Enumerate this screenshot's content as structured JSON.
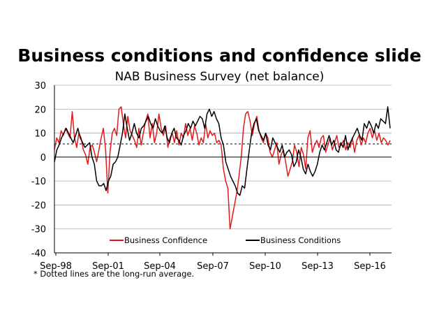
{
  "chart_data": {
    "type": "line",
    "title": "Business conditions and confidence slide",
    "subtitle": "NAB Business Survey (net balance)",
    "xlabel": "",
    "ylabel": "",
    "ylim": [
      -40,
      30
    ],
    "yticks": [
      30,
      20,
      10,
      0,
      -10,
      -20,
      -30,
      -40
    ],
    "x_tick_labels": [
      "Sep-98",
      "Sep-01",
      "Sep-04",
      "Sep-07",
      "Sep-10",
      "Sep-13",
      "Sep-16"
    ],
    "x_range": [
      "Sep-98",
      "Feb-18"
    ],
    "grid": "horizontal",
    "legend": "bottom",
    "long_run_average": 5.5,
    "footnote": "* Dotted lines are the long-run average.",
    "series": [
      {
        "name": "Business Confidence",
        "color": "#e31a1c",
        "values": [
          3,
          8,
          6,
          11,
          9,
          12,
          10,
          8,
          19,
          8,
          4,
          10,
          8,
          3,
          1,
          -3,
          4,
          5,
          2,
          -2,
          3,
          8,
          12,
          3,
          -15,
          2,
          10,
          12,
          9,
          20,
          21,
          14,
          8,
          17,
          11,
          9,
          7,
          4,
          12,
          5,
          10,
          15,
          18,
          8,
          14,
          6,
          10,
          18,
          12,
          9,
          13,
          4,
          8,
          10,
          6,
          11,
          5,
          10,
          8,
          14,
          9,
          12,
          7,
          13,
          10,
          5,
          8,
          6,
          14,
          8,
          11,
          9,
          10,
          6,
          7,
          5,
          -5,
          -10,
          -13,
          -30,
          -25,
          -20,
          -15,
          -8,
          0,
          12,
          18,
          19,
          15,
          9,
          14,
          17,
          11,
          8,
          6,
          10,
          8,
          2,
          0,
          3,
          6,
          -3,
          1,
          3,
          -2,
          -8,
          -5,
          -2,
          5,
          2,
          -4,
          4,
          1,
          -5,
          8,
          11,
          2,
          5,
          7,
          4,
          8,
          9,
          2,
          5,
          8,
          3,
          6,
          9,
          4,
          5,
          7,
          3,
          6,
          4,
          8,
          2,
          7,
          9,
          5,
          8,
          6,
          10,
          12,
          8,
          11,
          7,
          10,
          6,
          8,
          7,
          5,
          7
        ]
      },
      {
        "name": "Business Conditions",
        "color": "#000000",
        "values": [
          -2,
          3,
          5,
          8,
          10,
          12,
          10,
          8,
          6,
          9,
          12,
          8,
          6,
          4,
          5,
          6,
          0,
          -3,
          -10,
          -12,
          -12,
          -11,
          -14,
          -10,
          -8,
          -3,
          -2,
          0,
          5,
          10,
          18,
          12,
          7,
          10,
          14,
          10,
          8,
          12,
          13,
          15,
          17,
          14,
          12,
          16,
          13,
          11,
          10,
          13,
          8,
          6,
          10,
          12,
          8,
          7,
          5,
          9,
          11,
          14,
          12,
          15,
          13,
          15,
          17,
          16,
          12,
          18,
          20,
          17,
          19,
          16,
          14,
          8,
          5,
          -2,
          -5,
          -8,
          -10,
          -12,
          -15,
          -16,
          -12,
          -13,
          -5,
          3,
          10,
          14,
          16,
          11,
          9,
          7,
          10,
          5,
          3,
          8,
          6,
          4,
          2,
          5,
          0,
          2,
          3,
          1,
          -4,
          -2,
          3,
          0,
          -5,
          -7,
          -3,
          -6,
          -8,
          -6,
          -3,
          2,
          5,
          3,
          6,
          9,
          5,
          7,
          3,
          2,
          6,
          4,
          9,
          3,
          6,
          8,
          10,
          12,
          9,
          7,
          14,
          12,
          15,
          13,
          10,
          14,
          12,
          16,
          15,
          14,
          21,
          12
        ]
      }
    ]
  }
}
